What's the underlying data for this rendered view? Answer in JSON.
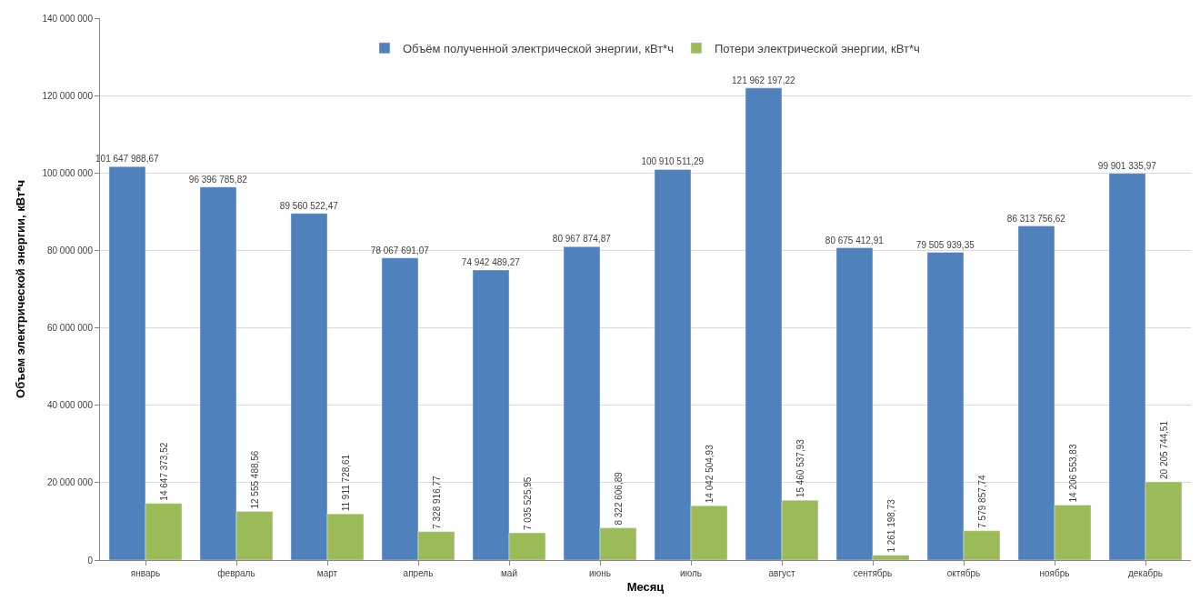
{
  "chart_data": {
    "type": "bar",
    "xlabel": "Месяц",
    "ylabel": "Объем электрической энергии, кВт*ч",
    "categories": [
      "январь",
      "февраль",
      "март",
      "апрель",
      "май",
      "июнь",
      "июль",
      "август",
      "сентябрь",
      "октябрь",
      "ноябрь",
      "декабрь"
    ],
    "series": [
      {
        "name": "Объём полученной электрической энергии, кВт*ч",
        "color": "#4f81bd",
        "values": [
          101647988.67,
          96396785.82,
          89560522.47,
          78067691.07,
          74942489.27,
          80967874.87,
          100910511.29,
          121962197.22,
          80675412.91,
          79505939.35,
          86313756.62,
          99901335.97
        ],
        "value_labels": [
          "101 647 988,67",
          "96 396 785,82",
          "89 560 522,47",
          "78 067 691,07",
          "74 942 489,27",
          "80 967 874,87",
          "100 910 511,29",
          "121 962 197,22",
          "80 675 412,91",
          "79 505 939,35",
          "86 313 756,62",
          "99 901 335,97"
        ]
      },
      {
        "name": "Потери электрической энергии, кВт*ч",
        "color": "#9bbb59",
        "values": [
          14647373.52,
          12555488.56,
          11911728.61,
          7328916.77,
          7035525.95,
          8322606.89,
          14042504.93,
          15460537.93,
          1261198.73,
          7579857.74,
          14206553.83,
          20205744.51
        ],
        "value_labels": [
          "14 647 373,52",
          "12 555 488,56",
          "11 911 728,61",
          "7 328 916,77",
          "7 035 525,95",
          "8 322 606,89",
          "14 042 504,93",
          "15 460 537,93",
          "1 261 198,73",
          "7 579 857,74",
          "14 206 553,83",
          "20 205 744,51"
        ]
      }
    ],
    "ylim": [
      0,
      140000000
    ],
    "yticks": [
      {
        "value": 0,
        "label": "0"
      },
      {
        "value": 20000000,
        "label": "20 000 000"
      },
      {
        "value": 40000000,
        "label": "40 000 000"
      },
      {
        "value": 60000000,
        "label": "60 000 000"
      },
      {
        "value": 80000000,
        "label": "80 000 000"
      },
      {
        "value": 100000000,
        "label": "100 000 000"
      },
      {
        "value": 120000000,
        "label": "120 000 000"
      },
      {
        "value": 140000000,
        "label": "140 000 000"
      }
    ],
    "grid": "y",
    "legend": "top"
  }
}
